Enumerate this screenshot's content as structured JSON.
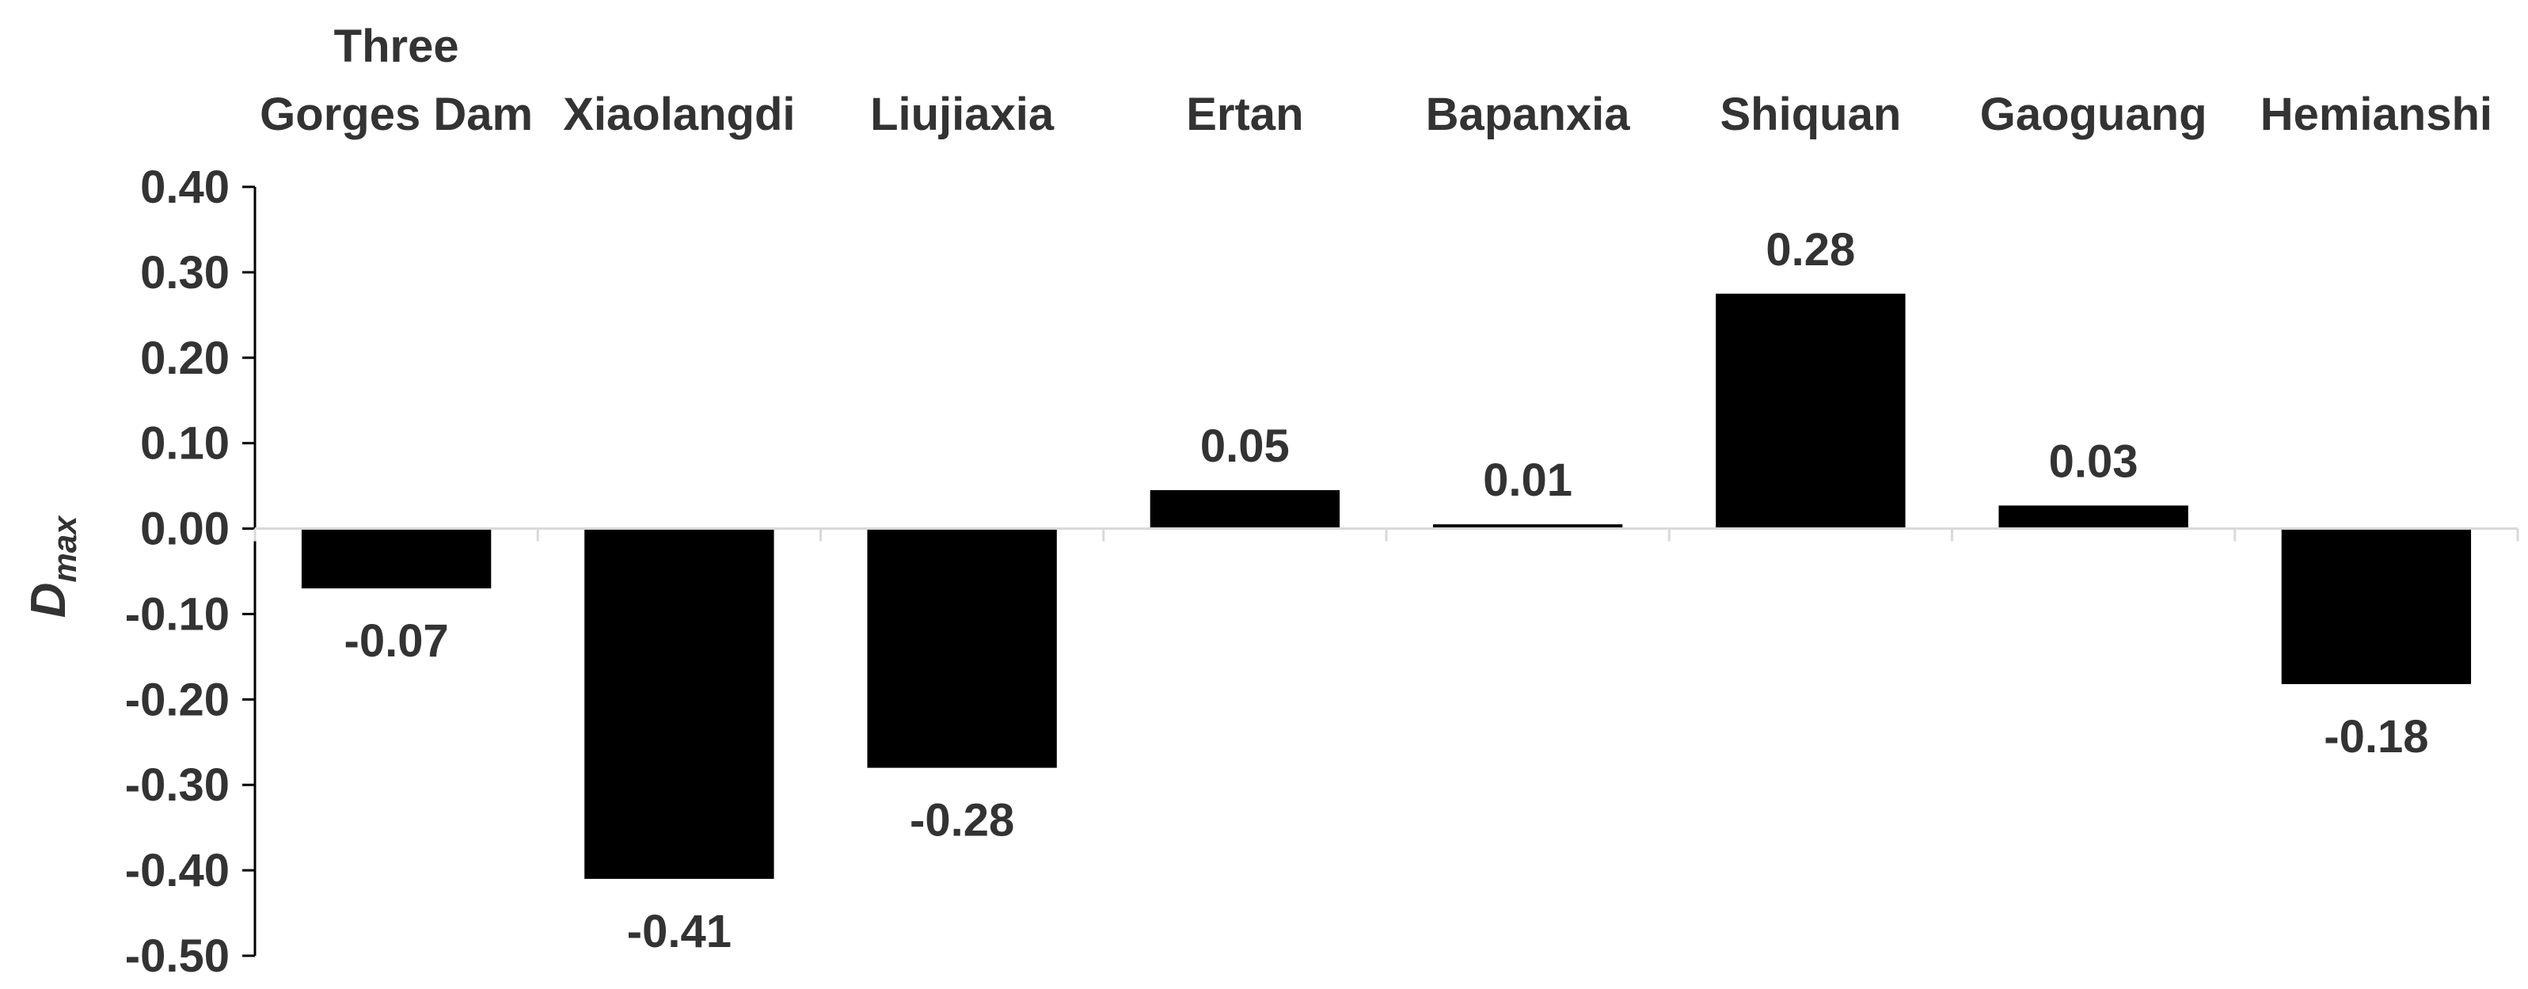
{
  "chart_data": {
    "type": "bar",
    "title": "",
    "xlabel": "",
    "ylabel": "D",
    "ylabel_subscript": "max",
    "ylim": [
      -0.5,
      0.4
    ],
    "yticks": [
      0.4,
      0.3,
      0.2,
      0.1,
      0.0,
      -0.1,
      -0.2,
      -0.3,
      -0.4,
      -0.5
    ],
    "ytick_labels": [
      "0.40",
      "0.30",
      "0.20",
      "0.10",
      "0.00",
      "-0.10",
      "-0.20",
      "-0.30",
      "-0.40",
      "-0.50"
    ],
    "category_label_position": "top",
    "grid": false,
    "legend": "none",
    "bar_color": "#000000",
    "text_color": "#333333",
    "categories": [
      [
        "Three",
        "Gorges Dam"
      ],
      [
        "Xiaolangdi"
      ],
      [
        "Liujiaxia"
      ],
      [
        "Ertan"
      ],
      [
        "Bapanxia"
      ],
      [
        "Shiquan"
      ],
      [
        "Gaoguang"
      ],
      [
        "Hemianshi"
      ]
    ],
    "values": [
      -0.07,
      -0.41,
      -0.28,
      0.045,
      0.005,
      0.275,
      0.027,
      -0.182
    ],
    "data_labels": [
      "-0.07",
      "-0.41",
      "-0.28",
      "0.05",
      "0.01",
      "0.28",
      "0.03",
      "-0.18"
    ]
  }
}
